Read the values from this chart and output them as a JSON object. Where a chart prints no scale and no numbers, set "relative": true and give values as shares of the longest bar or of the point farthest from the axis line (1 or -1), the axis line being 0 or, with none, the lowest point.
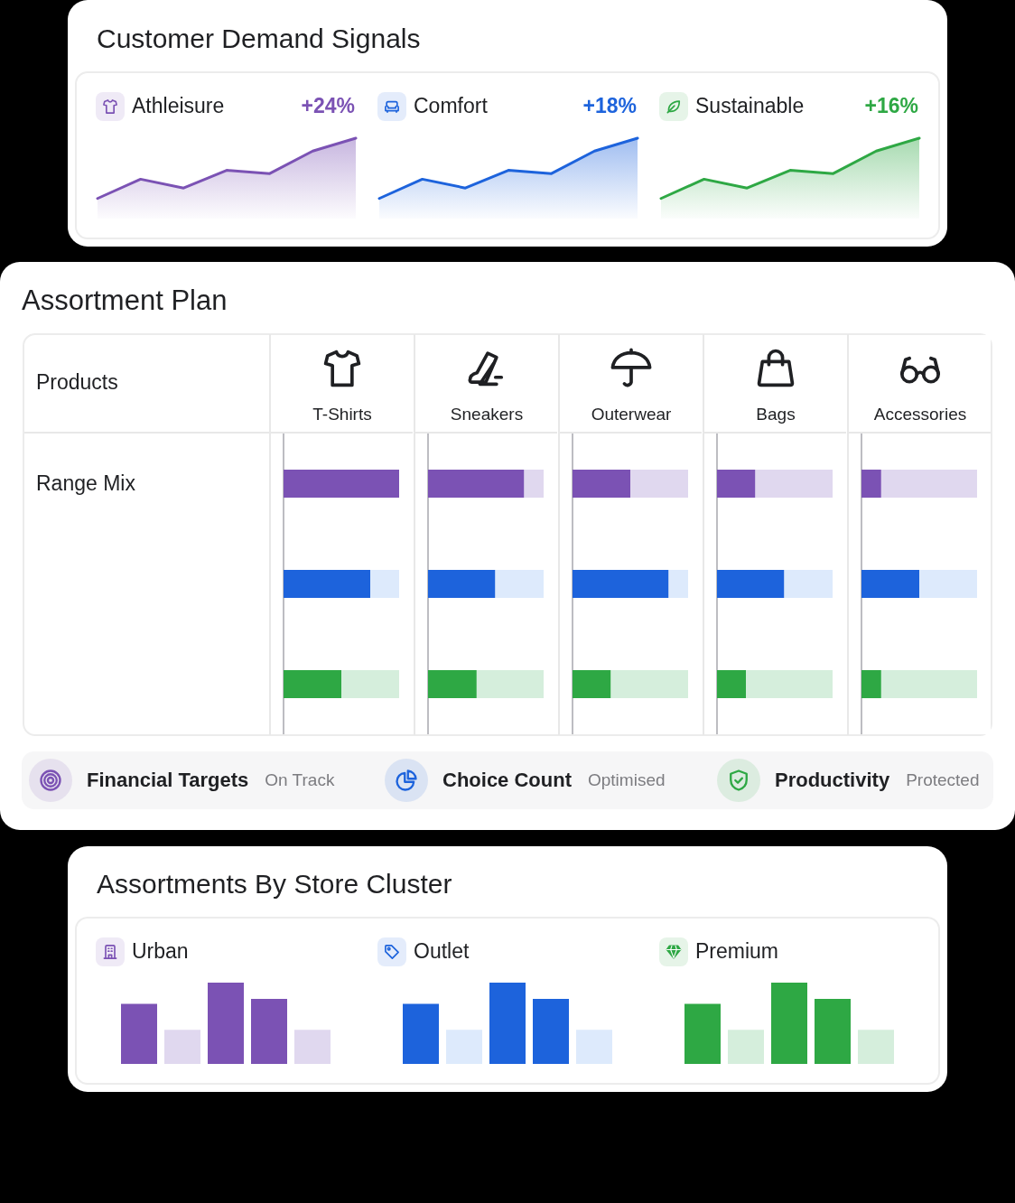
{
  "chart_data": [
    {
      "type": "other",
      "title": "Customer Demand Signals"
    },
    {
      "type": "area",
      "title": "Athleisure",
      "categories": [
        null,
        null,
        null,
        null,
        null,
        null,
        null
      ],
      "relative": true,
      "series": [
        {
          "color": "#7b52b4",
          "values": [
            0.25,
            0.49,
            0.38,
            0.6,
            0.56,
            0.84,
            1
          ]
        }
      ],
      "annotations": [
        "+24%"
      ]
    },
    {
      "type": "area",
      "title": "Comfort",
      "categories": [
        null,
        null,
        null,
        null,
        null,
        null,
        null
      ],
      "relative": true,
      "series": [
        {
          "color": "#1d63dc",
          "values": [
            0.25,
            0.49,
            0.38,
            0.6,
            0.56,
            0.84,
            1
          ]
        }
      ],
      "annotations": [
        "+18%"
      ]
    },
    {
      "type": "area",
      "title": "Sustainable",
      "categories": [
        null,
        null,
        null,
        null,
        null,
        null,
        null
      ],
      "relative": true,
      "series": [
        {
          "color": "#2ea844",
          "values": [
            0.25,
            0.49,
            0.38,
            0.6,
            0.56,
            0.84,
            1
          ]
        }
      ],
      "annotations": [
        "+16%"
      ]
    },
    {
      "type": "other",
      "title": "Assortment Plan",
      "annotations": [
        "Products",
        "Range Mix"
      ]
    },
    {
      "type": "bar",
      "title": "T-Shirts",
      "orientation": "horizontal",
      "stacked": true,
      "relative": true,
      "categories": [
        null,
        null,
        null
      ],
      "series": [
        {
          "colors": [
            "#7b52b4",
            "#1d63dc",
            "#2ea844"
          ],
          "values": [
            1,
            0.75,
            0.5
          ]
        },
        {
          "colors": [
            "#e0d8ef",
            "#ddeafc",
            "#d5eedc"
          ],
          "values": [
            0,
            0.25,
            0.5
          ]
        }
      ]
    },
    {
      "type": "bar",
      "title": "Sneakers",
      "orientation": "horizontal",
      "stacked": true,
      "relative": true,
      "categories": [
        null,
        null,
        null
      ],
      "series": [
        {
          "colors": [
            "#7b52b4",
            "#1d63dc",
            "#2ea844"
          ],
          "values": [
            0.83,
            0.58,
            0.42
          ]
        },
        {
          "colors": [
            "#e0d8ef",
            "#ddeafc",
            "#d5eedc"
          ],
          "values": [
            0.17,
            0.42,
            0.58
          ]
        }
      ]
    },
    {
      "type": "bar",
      "title": "Outerwear",
      "orientation": "horizontal",
      "stacked": true,
      "relative": true,
      "categories": [
        null,
        null,
        null
      ],
      "series": [
        {
          "colors": [
            "#7b52b4",
            "#1d63dc",
            "#2ea844"
          ],
          "values": [
            0.5,
            0.83,
            0.33
          ]
        },
        {
          "colors": [
            "#e0d8ef",
            "#ddeafc",
            "#d5eedc"
          ],
          "values": [
            0.5,
            0.17,
            0.67
          ]
        }
      ]
    },
    {
      "type": "bar",
      "title": "Bags",
      "orientation": "horizontal",
      "stacked": true,
      "relative": true,
      "categories": [
        null,
        null,
        null
      ],
      "series": [
        {
          "colors": [
            "#7b52b4",
            "#1d63dc",
            "#2ea844"
          ],
          "values": [
            0.33,
            0.58,
            0.25
          ]
        },
        {
          "colors": [
            "#e0d8ef",
            "#ddeafc",
            "#d5eedc"
          ],
          "values": [
            0.67,
            0.42,
            0.75
          ]
        }
      ]
    },
    {
      "type": "bar",
      "title": "Accessories",
      "orientation": "horizontal",
      "stacked": true,
      "relative": true,
      "categories": [
        null,
        null,
        null
      ],
      "series": [
        {
          "colors": [
            "#7b52b4",
            "#1d63dc",
            "#2ea844"
          ],
          "values": [
            0.17,
            0.5,
            0.17
          ]
        },
        {
          "colors": [
            "#e0d8ef",
            "#ddeafc",
            "#d5eedc"
          ],
          "values": [
            0.83,
            0.5,
            0.83
          ]
        }
      ]
    },
    {
      "type": "other",
      "annotations": [
        "Financial Targets",
        "On Track",
        "Choice Count",
        "Optimised",
        "Productivity",
        "Protected"
      ]
    },
    {
      "type": "other",
      "title": "Assortments By Store Cluster"
    },
    {
      "type": "bar",
      "title": "Urban",
      "categories": [
        null,
        null,
        null,
        null,
        null
      ],
      "relative": true,
      "series": [
        {
          "colors": [
            "#7b52b4",
            "#e0d8ef",
            "#7b52b4",
            "#7b52b4",
            "#e0d8ef"
          ],
          "values": [
            0.74,
            0.42,
            1,
            0.8,
            0.42
          ]
        }
      ]
    },
    {
      "type": "bar",
      "title": "Outlet",
      "categories": [
        null,
        null,
        null,
        null,
        null
      ],
      "relative": true,
      "series": [
        {
          "colors": [
            "#1d63dc",
            "#ddeafc",
            "#1d63dc",
            "#1d63dc",
            "#ddeafc"
          ],
          "values": [
            0.74,
            0.42,
            1,
            0.8,
            0.42
          ]
        }
      ]
    },
    {
      "type": "bar",
      "title": "Premium",
      "categories": [
        null,
        null,
        null,
        null,
        null
      ],
      "relative": true,
      "series": [
        {
          "colors": [
            "#2ea844",
            "#d5eedc",
            "#2ea844",
            "#2ea844",
            "#d5eedc"
          ],
          "values": [
            0.74,
            0.42,
            1,
            0.8,
            0.42
          ]
        }
      ]
    }
  ]
}
